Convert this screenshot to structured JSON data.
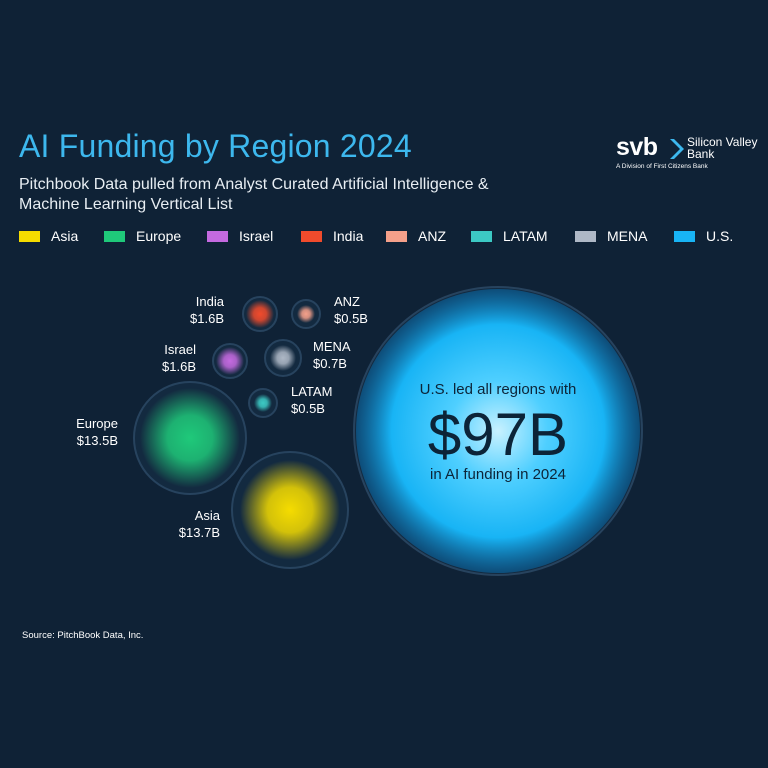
{
  "title": "AI Funding by Region 2024",
  "subtitle": "Pitchbook Data pulled from Analyst Curated Artificial Intelligence & Machine Learning Vertical List",
  "logo": {
    "mark": "svb",
    "name_line1": "Silicon Valley",
    "name_line2": "Bank",
    "division": "A Division of First Citizens Bank"
  },
  "source": "Source: PitchBook Data, Inc.",
  "callout": {
    "line1": "U.S. led all regions with",
    "value": "$97B",
    "line2": "in AI funding in 2024"
  },
  "chart_data": {
    "type": "bubble",
    "unit": "USD billions",
    "legend_placement": "top",
    "series": [
      {
        "name": "Asia",
        "value": 13.7,
        "label": "$13.7B",
        "color": "#f5dc00"
      },
      {
        "name": "Europe",
        "value": 13.5,
        "label": "$13.5B",
        "color": "#1fc97a"
      },
      {
        "name": "Israel",
        "value": 1.6,
        "label": "$1.6B",
        "color": "#c46ae0"
      },
      {
        "name": "India",
        "value": 1.6,
        "label": "$1.6B",
        "color": "#f04b2c"
      },
      {
        "name": "ANZ",
        "value": 0.5,
        "label": "$0.5B",
        "color": "#f4a08a"
      },
      {
        "name": "LATAM",
        "value": 0.5,
        "label": "$0.5B",
        "color": "#3cc9c4"
      },
      {
        "name": "MENA",
        "value": 0.7,
        "label": "$0.7B",
        "color": "#aeb8c6"
      },
      {
        "name": "U.S.",
        "value": 97,
        "label": "$97B",
        "color": "#18b4f5"
      }
    ]
  }
}
